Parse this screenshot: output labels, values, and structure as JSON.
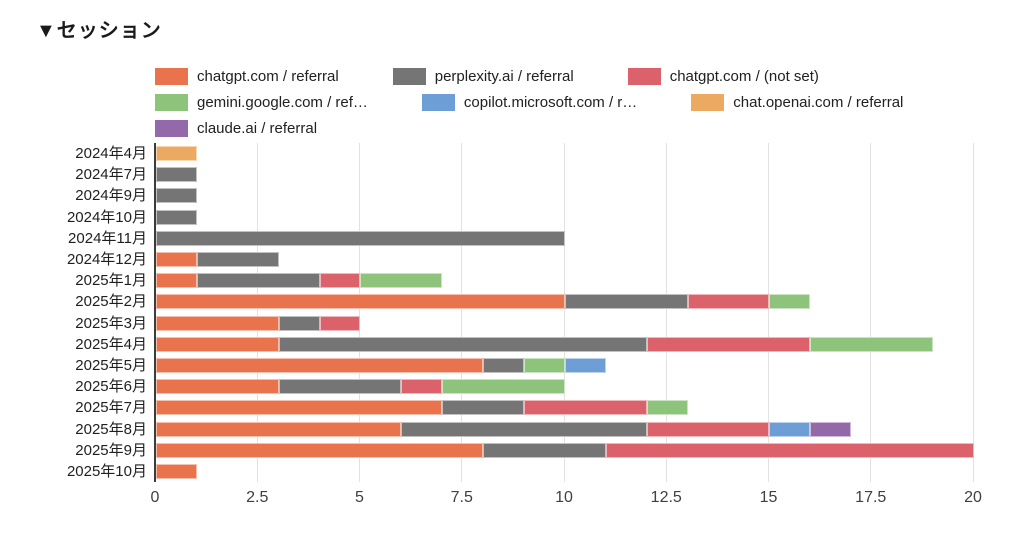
{
  "title": "▼セッション",
  "chart_data": {
    "type": "bar",
    "orientation": "horizontal",
    "stacked": true,
    "title": "▼セッション",
    "legend_position": "top",
    "grid": true,
    "xlim": [
      0,
      20
    ],
    "x_ticks": [
      "0",
      "2.5",
      "5",
      "7.5",
      "10",
      "12.5",
      "15",
      "17.5",
      "20"
    ],
    "categories": [
      "2024年4月",
      "2024年7月",
      "2024年9月",
      "2024年10月",
      "2024年11月",
      "2024年12月",
      "2025年1月",
      "2025年2月",
      "2025年3月",
      "2025年4月",
      "2025年5月",
      "2025年6月",
      "2025年7月",
      "2025年8月",
      "2025年9月",
      "2025年10月"
    ],
    "series": [
      {
        "name": "chatgpt.com / referral",
        "color": "#e8734d",
        "values": [
          0,
          0,
          0,
          0,
          0,
          1,
          1,
          10,
          3,
          3,
          8,
          3,
          7,
          6,
          8,
          1
        ]
      },
      {
        "name": "perplexity.ai / referral",
        "color": "#757575",
        "values": [
          0,
          1,
          1,
          1,
          10,
          2,
          3,
          3,
          1,
          9,
          1,
          3,
          2,
          6,
          3,
          0
        ]
      },
      {
        "name": "chatgpt.com / (not set)",
        "color": "#db626b",
        "values": [
          0,
          0,
          0,
          0,
          0,
          0,
          1,
          2,
          1,
          4,
          0,
          1,
          3,
          3,
          9,
          0
        ]
      },
      {
        "name": "gemini.google.com / ref…",
        "color": "#8dc37a",
        "values": [
          0,
          0,
          0,
          0,
          0,
          0,
          2,
          1,
          0,
          3,
          1,
          3,
          1,
          0,
          0,
          0
        ]
      },
      {
        "name": "copilot.microsoft.com / r…",
        "color": "#6d9ed6",
        "values": [
          0,
          0,
          0,
          0,
          0,
          0,
          0,
          0,
          0,
          0,
          1,
          0,
          0,
          1,
          0,
          0
        ]
      },
      {
        "name": "chat.openai.com / referral",
        "color": "#eba961",
        "values": [
          1,
          0,
          0,
          0,
          0,
          0,
          0,
          0,
          0,
          0,
          0,
          0,
          0,
          0,
          0,
          0
        ]
      },
      {
        "name": "claude.ai / referral",
        "color": "#9369a9",
        "values": [
          0,
          0,
          0,
          0,
          0,
          0,
          0,
          0,
          0,
          0,
          0,
          0,
          0,
          1,
          0,
          0
        ]
      }
    ]
  }
}
